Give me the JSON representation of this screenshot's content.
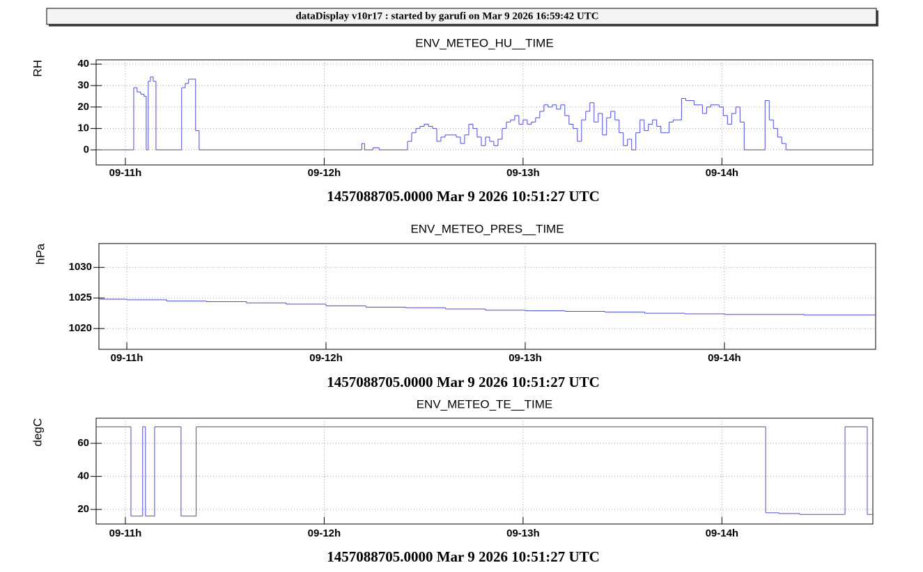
{
  "header": {
    "title": "dataDisplay v10r17 : started by garufi on Mar  9 2026 16:59:42 UTC"
  },
  "chart_data": [
    {
      "type": "line",
      "drawstyle": "steps-post",
      "title": "ENV_METEO_HU__TIME",
      "ylabel": "RH",
      "xlabel": "1457088705.0000 Mar 9 2026 10:51:27 UTC",
      "color": "#4a4ad6",
      "grid": true,
      "xlim": [
        10.853,
        14.759
      ],
      "ylim": [
        -7,
        42
      ],
      "xticks": [
        {
          "value": 11,
          "label": "09-11h"
        },
        {
          "value": 12,
          "label": "09-12h"
        },
        {
          "value": 13,
          "label": "09-13h"
        },
        {
          "value": 14,
          "label": "09-14h"
        }
      ],
      "yticks": [
        0,
        10,
        20,
        30,
        40
      ],
      "x": [
        10.853,
        11.042,
        11.059,
        11.077,
        11.094,
        11.105,
        11.115,
        11.126,
        11.14,
        11.154,
        11.283,
        11.301,
        11.318,
        11.353,
        11.371,
        12.189,
        12.203,
        12.245,
        12.276,
        12.419,
        12.44,
        12.461,
        12.482,
        12.503,
        12.524,
        12.545,
        12.566,
        12.587,
        12.608,
        12.664,
        12.685,
        12.706,
        12.727,
        12.748,
        12.769,
        12.79,
        12.811,
        12.832,
        12.853,
        12.874,
        12.895,
        12.916,
        12.937,
        12.958,
        12.979,
        13.0,
        13.021,
        13.042,
        13.063,
        13.084,
        13.105,
        13.126,
        13.147,
        13.168,
        13.189,
        13.21,
        13.231,
        13.252,
        13.273,
        13.294,
        13.315,
        13.336,
        13.357,
        13.378,
        13.399,
        13.42,
        13.441,
        13.462,
        13.483,
        13.504,
        13.525,
        13.546,
        13.567,
        13.588,
        13.609,
        13.63,
        13.651,
        13.672,
        13.693,
        13.734,
        13.755,
        13.797,
        13.818,
        13.86,
        13.902,
        13.923,
        13.944,
        13.986,
        14.007,
        14.028,
        14.049,
        14.07,
        14.091,
        14.112,
        14.217,
        14.238,
        14.259,
        14.28,
        14.301,
        14.322
      ],
      "values": [
        0,
        29,
        27,
        26,
        25,
        0,
        32,
        34,
        32,
        0,
        29,
        31,
        33,
        9,
        0,
        3,
        0,
        1,
        0,
        4,
        8,
        10,
        11,
        12,
        11,
        10,
        4,
        6,
        7,
        6,
        3,
        7,
        12,
        10,
        6,
        2,
        6,
        4,
        2,
        5,
        10,
        13,
        14,
        16,
        12,
        14,
        12,
        13,
        15,
        18,
        21,
        20,
        21,
        19,
        21,
        16,
        12,
        10,
        4,
        14,
        18,
        22,
        13,
        17,
        7,
        15,
        18,
        14,
        8,
        2,
        5,
        0,
        8,
        14,
        9,
        12,
        14,
        11,
        8,
        13,
        14,
        24,
        23,
        21,
        17,
        20,
        21,
        20,
        16,
        12,
        17,
        20,
        13,
        0,
        23,
        14,
        10,
        6,
        3,
        0
      ]
    },
    {
      "type": "line",
      "drawstyle": "steps-post",
      "title": "ENV_METEO_PRES__TIME",
      "ylabel": "hPa",
      "xlabel": "1457088705.0000 Mar 9 2026 10:51:27 UTC",
      "color": "#4a4ad6",
      "grid": true,
      "xlim": [
        10.86,
        14.759
      ],
      "ylim": [
        1016.6,
        1033.9
      ],
      "xticks": [
        {
          "value": 11,
          "label": "09-11h"
        },
        {
          "value": 12,
          "label": "09-12h"
        },
        {
          "value": 13,
          "label": "09-13h"
        },
        {
          "value": 14,
          "label": "09-14h"
        }
      ],
      "yticks": [
        1020,
        1025,
        1030
      ],
      "x": [
        10.86,
        11.0,
        11.2,
        11.4,
        11.6,
        11.8,
        12.0,
        12.2,
        12.4,
        12.6,
        12.8,
        13.0,
        13.2,
        13.4,
        13.6,
        13.8,
        14.0,
        14.2,
        14.4,
        14.6
      ],
      "values": [
        1024.8,
        1024.7,
        1024.5,
        1024.4,
        1024.2,
        1024.0,
        1023.7,
        1023.5,
        1023.4,
        1023.2,
        1023.0,
        1022.9,
        1022.8,
        1022.7,
        1022.5,
        1022.4,
        1022.3,
        1022.3,
        1022.2,
        1022.2
      ]
    },
    {
      "type": "line",
      "drawstyle": "steps-post",
      "title": "ENV_METEO_TE__TIME",
      "ylabel": "degC",
      "xlabel": "1457088705.0000 Mar 9 2026 10:51:27 UTC",
      "color": "#4a4ad6",
      "grid": true,
      "xlim": [
        10.853,
        14.759
      ],
      "ylim": [
        11.2,
        75.2
      ],
      "xticks": [
        {
          "value": 11,
          "label": "09-11h"
        },
        {
          "value": 12,
          "label": "09-12h"
        },
        {
          "value": 13,
          "label": "09-13h"
        },
        {
          "value": 14,
          "label": "09-14h"
        }
      ],
      "yticks": [
        20,
        40,
        60
      ],
      "x": [
        10.853,
        11.028,
        11.087,
        11.101,
        11.147,
        11.28,
        11.356,
        14.22,
        14.287,
        14.391,
        14.619,
        14.731
      ],
      "values": [
        70,
        16,
        70,
        16,
        70,
        16,
        70,
        18,
        17.5,
        17,
        70,
        17
      ]
    }
  ]
}
